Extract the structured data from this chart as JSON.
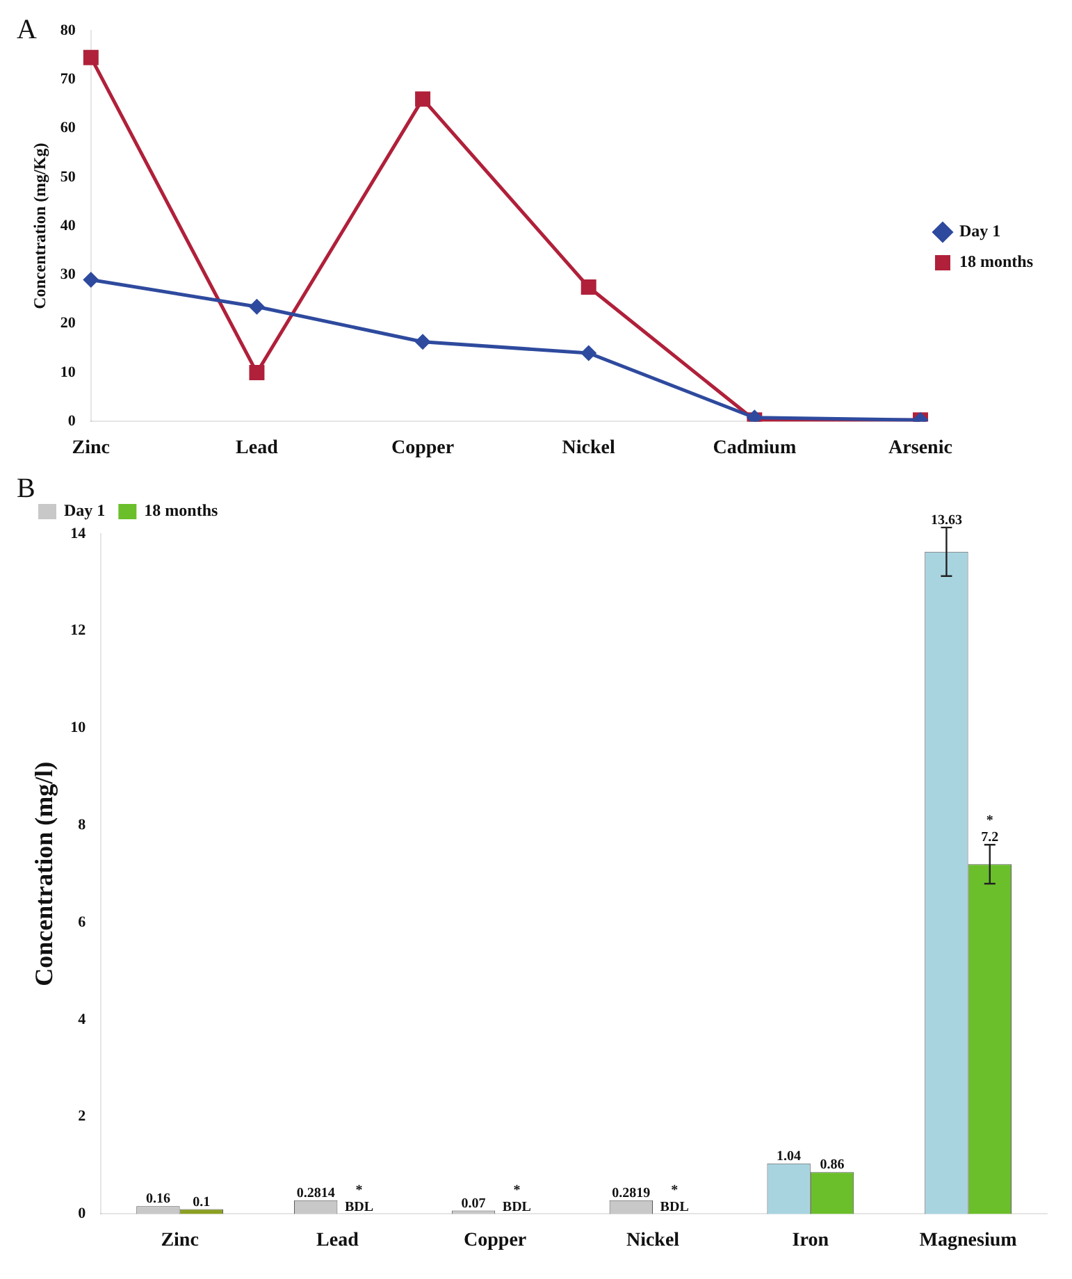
{
  "chart_data": [
    {
      "type": "line",
      "title": "A",
      "ylabel": "Concentration (mg/Kg)",
      "categories": [
        "Zinc",
        "Lead",
        "Copper",
        "Nickel",
        "Cadmium",
        "Arsenic"
      ],
      "series": [
        {
          "name": "Day 1",
          "color": "#2e4a9e",
          "marker": "diamond",
          "values": [
            29,
            23.5,
            16.3,
            14,
            0.8,
            0.3
          ]
        },
        {
          "name": "18 months",
          "color": "#b0203a",
          "marker": "square",
          "values": [
            74.5,
            10,
            66,
            27.5,
            0.3,
            0.3
          ]
        }
      ],
      "ylim": [
        0,
        80
      ],
      "yticks": [
        0,
        10,
        20,
        30,
        40,
        50,
        60,
        70,
        80
      ],
      "grid": false,
      "legend": "right"
    },
    {
      "type": "bar",
      "title": "B",
      "ylabel": "Concentration (mg/l)",
      "categories": [
        "Zinc",
        "Lead",
        "Copper",
        "Nickel",
        "Iron",
        "Magnesium"
      ],
      "series": [
        {
          "name": "Day 1",
          "color": "#c8c8c8",
          "colors": [
            "#c8c8c8",
            "#c8c8c8",
            "#c8c8c8",
            "#c8c8c8",
            "#a8d4e0",
            "#a8d4e0"
          ],
          "values": [
            0.16,
            0.2814,
            0.07,
            0.2819,
            1.04,
            13.63
          ],
          "value_labels": [
            "0.16",
            "0.2814",
            "0.07",
            "0.2819",
            "1.04",
            "13.63"
          ],
          "errors": [
            null,
            null,
            null,
            null,
            null,
            0.5
          ]
        },
        {
          "name": "18 months",
          "color": "#6abf2a",
          "colors": [
            "#8aa020",
            "#6abf2a",
            "#6abf2a",
            "#6abf2a",
            "#6abf2a",
            "#6abf2a"
          ],
          "values": [
            0.1,
            null,
            null,
            null,
            0.86,
            7.2
          ],
          "value_labels": [
            "0.1",
            "*\nBDL",
            "*\nBDL",
            "*\nBDL",
            "0.86",
            "*\n7.2"
          ],
          "errors": [
            null,
            null,
            null,
            null,
            null,
            0.4
          ]
        }
      ],
      "ylim": [
        0,
        14
      ],
      "yticks": [
        0,
        2,
        4,
        6,
        8,
        10,
        12,
        14
      ],
      "grid": false,
      "legend": "top left"
    }
  ]
}
